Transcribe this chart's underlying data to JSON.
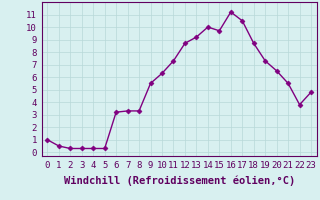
{
  "x": [
    0,
    1,
    2,
    3,
    4,
    5,
    6,
    7,
    8,
    9,
    10,
    11,
    12,
    13,
    14,
    15,
    16,
    17,
    18,
    19,
    20,
    21,
    22,
    23
  ],
  "y": [
    1.0,
    0.5,
    0.3,
    0.3,
    0.3,
    0.3,
    3.2,
    3.3,
    3.3,
    5.5,
    6.3,
    7.3,
    8.7,
    9.2,
    10.0,
    9.7,
    11.2,
    10.5,
    8.7,
    7.3,
    6.5,
    5.5,
    3.8,
    4.8
  ],
  "xlabel": "Windchill (Refroidissement éolien,°C)",
  "ylim": [
    -0.3,
    12.0
  ],
  "xlim": [
    -0.5,
    23.5
  ],
  "yticks": [
    0,
    1,
    2,
    3,
    4,
    5,
    6,
    7,
    8,
    9,
    10,
    11
  ],
  "xticks": [
    0,
    1,
    2,
    3,
    4,
    5,
    6,
    7,
    8,
    9,
    10,
    11,
    12,
    13,
    14,
    15,
    16,
    17,
    18,
    19,
    20,
    21,
    22,
    23
  ],
  "line_color": "#800080",
  "marker": "D",
  "marker_size": 2.5,
  "line_width": 1.0,
  "bg_color": "#d8f0f0",
  "grid_color": "#b8d8d8",
  "xlabel_fontsize": 7.5,
  "tick_fontsize": 6.5,
  "text_color": "#600060"
}
